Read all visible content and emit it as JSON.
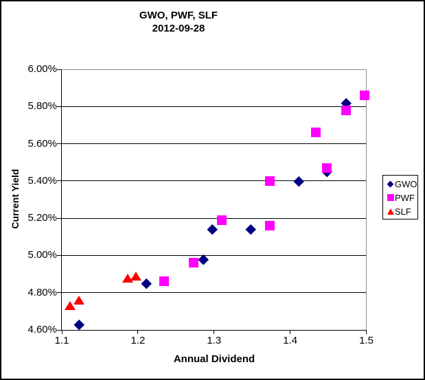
{
  "chart_data": {
    "type": "scatter",
    "title": "GWO, PWF, SLF",
    "subtitle": "2012-09-28",
    "xlabel": "Annual Dividend",
    "ylabel": "Current Yield",
    "xlim": [
      1.1,
      1.5
    ],
    "ylim": [
      4.6,
      6.0
    ],
    "x_ticks": [
      1.1,
      1.2,
      1.3,
      1.4,
      1.5
    ],
    "x_tick_labels": [
      "1.1",
      "1.2",
      "1.3",
      "1.4",
      "1.5"
    ],
    "y_ticks": [
      6.0,
      5.8,
      5.6,
      5.4,
      5.2,
      5.0,
      4.8,
      4.6
    ],
    "y_tick_labels": [
      "6.00%",
      "5.80%",
      "5.60%",
      "5.40%",
      "5.20%",
      "5.00%",
      "4.80%",
      "4.60%"
    ],
    "grid": "horizontal",
    "legend_position": "right",
    "plot_border_color": "#8c8c8c",
    "gridline_color": "#000000",
    "series": [
      {
        "name": "GWO",
        "marker": "diamond",
        "color": "#000080",
        "points": [
          [
            1.123,
            4.63
          ],
          [
            1.211,
            4.85
          ],
          [
            1.286,
            4.98
          ],
          [
            1.298,
            5.14
          ],
          [
            1.348,
            5.14
          ],
          [
            1.411,
            5.4
          ],
          [
            1.448,
            5.45
          ],
          [
            1.474,
            5.82
          ]
        ]
      },
      {
        "name": "PWF",
        "marker": "square",
        "color": "#FF00FF",
        "points": [
          [
            1.234,
            4.86
          ],
          [
            1.273,
            4.96
          ],
          [
            1.31,
            5.19
          ],
          [
            1.373,
            5.16
          ],
          [
            1.373,
            5.4
          ],
          [
            1.434,
            5.66
          ],
          [
            1.448,
            5.47
          ],
          [
            1.473,
            5.78
          ],
          [
            1.498,
            5.86
          ]
        ]
      },
      {
        "name": "SLF",
        "marker": "triangle",
        "color": "#FF0000",
        "points": [
          [
            1.111,
            4.73
          ],
          [
            1.123,
            4.76
          ],
          [
            1.187,
            4.88
          ],
          [
            1.198,
            4.89
          ]
        ]
      }
    ]
  }
}
